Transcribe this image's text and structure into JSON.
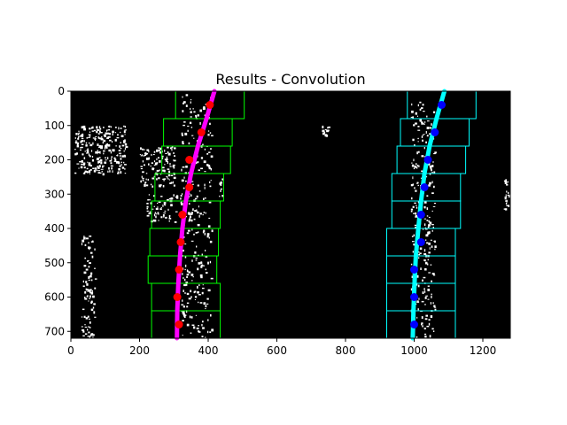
{
  "chart_data": {
    "type": "scatter",
    "title": "Results - Convolution",
    "xlabel": "",
    "ylabel": "",
    "xlim": [
      0,
      1280
    ],
    "ylim": [
      720,
      0
    ],
    "x_ticks": [
      0,
      200,
      400,
      600,
      800,
      1000,
      1200
    ],
    "y_ticks": [
      0,
      100,
      200,
      300,
      400,
      500,
      600,
      700
    ],
    "grid": false,
    "background": "#000000",
    "series": [
      {
        "role": "left-lane-window-centroids",
        "color": "#ff0000",
        "points": [
          [
            405,
            40
          ],
          [
            380,
            120
          ],
          [
            345,
            200
          ],
          [
            345,
            280
          ],
          [
            325,
            360
          ],
          [
            320,
            440
          ],
          [
            315,
            520
          ],
          [
            310,
            600
          ],
          [
            315,
            680
          ]
        ]
      },
      {
        "role": "right-lane-window-centroids",
        "color": "#0000ff",
        "points": [
          [
            1080,
            40
          ],
          [
            1060,
            120
          ],
          [
            1040,
            200
          ],
          [
            1030,
            280
          ],
          [
            1020,
            360
          ],
          [
            1020,
            440
          ],
          [
            1000,
            520
          ],
          [
            1000,
            600
          ],
          [
            1000,
            680
          ]
        ]
      },
      {
        "role": "left-lane-fit",
        "type": "line",
        "color": "#ff00ff",
        "points": [
          [
            418,
            0
          ],
          [
            395,
            80
          ],
          [
            370,
            160
          ],
          [
            350,
            240
          ],
          [
            335,
            320
          ],
          [
            325,
            400
          ],
          [
            318,
            480
          ],
          [
            313,
            560
          ],
          [
            310,
            640
          ],
          [
            309,
            720
          ]
        ]
      },
      {
        "role": "right-lane-fit",
        "type": "line",
        "color": "#00ffff",
        "points": [
          [
            1088,
            0
          ],
          [
            1065,
            80
          ],
          [
            1045,
            160
          ],
          [
            1030,
            240
          ],
          [
            1020,
            320
          ],
          [
            1012,
            400
          ],
          [
            1005,
            480
          ],
          [
            1001,
            560
          ],
          [
            998,
            640
          ],
          [
            996,
            720
          ]
        ]
      }
    ],
    "windows": [
      {
        "role": "left-search-windows",
        "color": "#00ff00",
        "height": 80,
        "width": 200,
        "centers": [
          [
            405,
            40
          ],
          [
            370,
            120
          ],
          [
            365,
            200
          ],
          [
            345,
            280
          ],
          [
            335,
            360
          ],
          [
            330,
            440
          ],
          [
            325,
            520
          ],
          [
            335,
            600
          ],
          [
            335,
            680
          ]
        ]
      },
      {
        "role": "right-search-windows",
        "color": "#00ffff",
        "height": 80,
        "width": 200,
        "centers": [
          [
            1080,
            40
          ],
          [
            1060,
            120
          ],
          [
            1050,
            200
          ],
          [
            1035,
            280
          ],
          [
            1035,
            360
          ],
          [
            1020,
            440
          ],
          [
            1020,
            520
          ],
          [
            1020,
            600
          ],
          [
            1020,
            680
          ]
        ]
      }
    ]
  }
}
